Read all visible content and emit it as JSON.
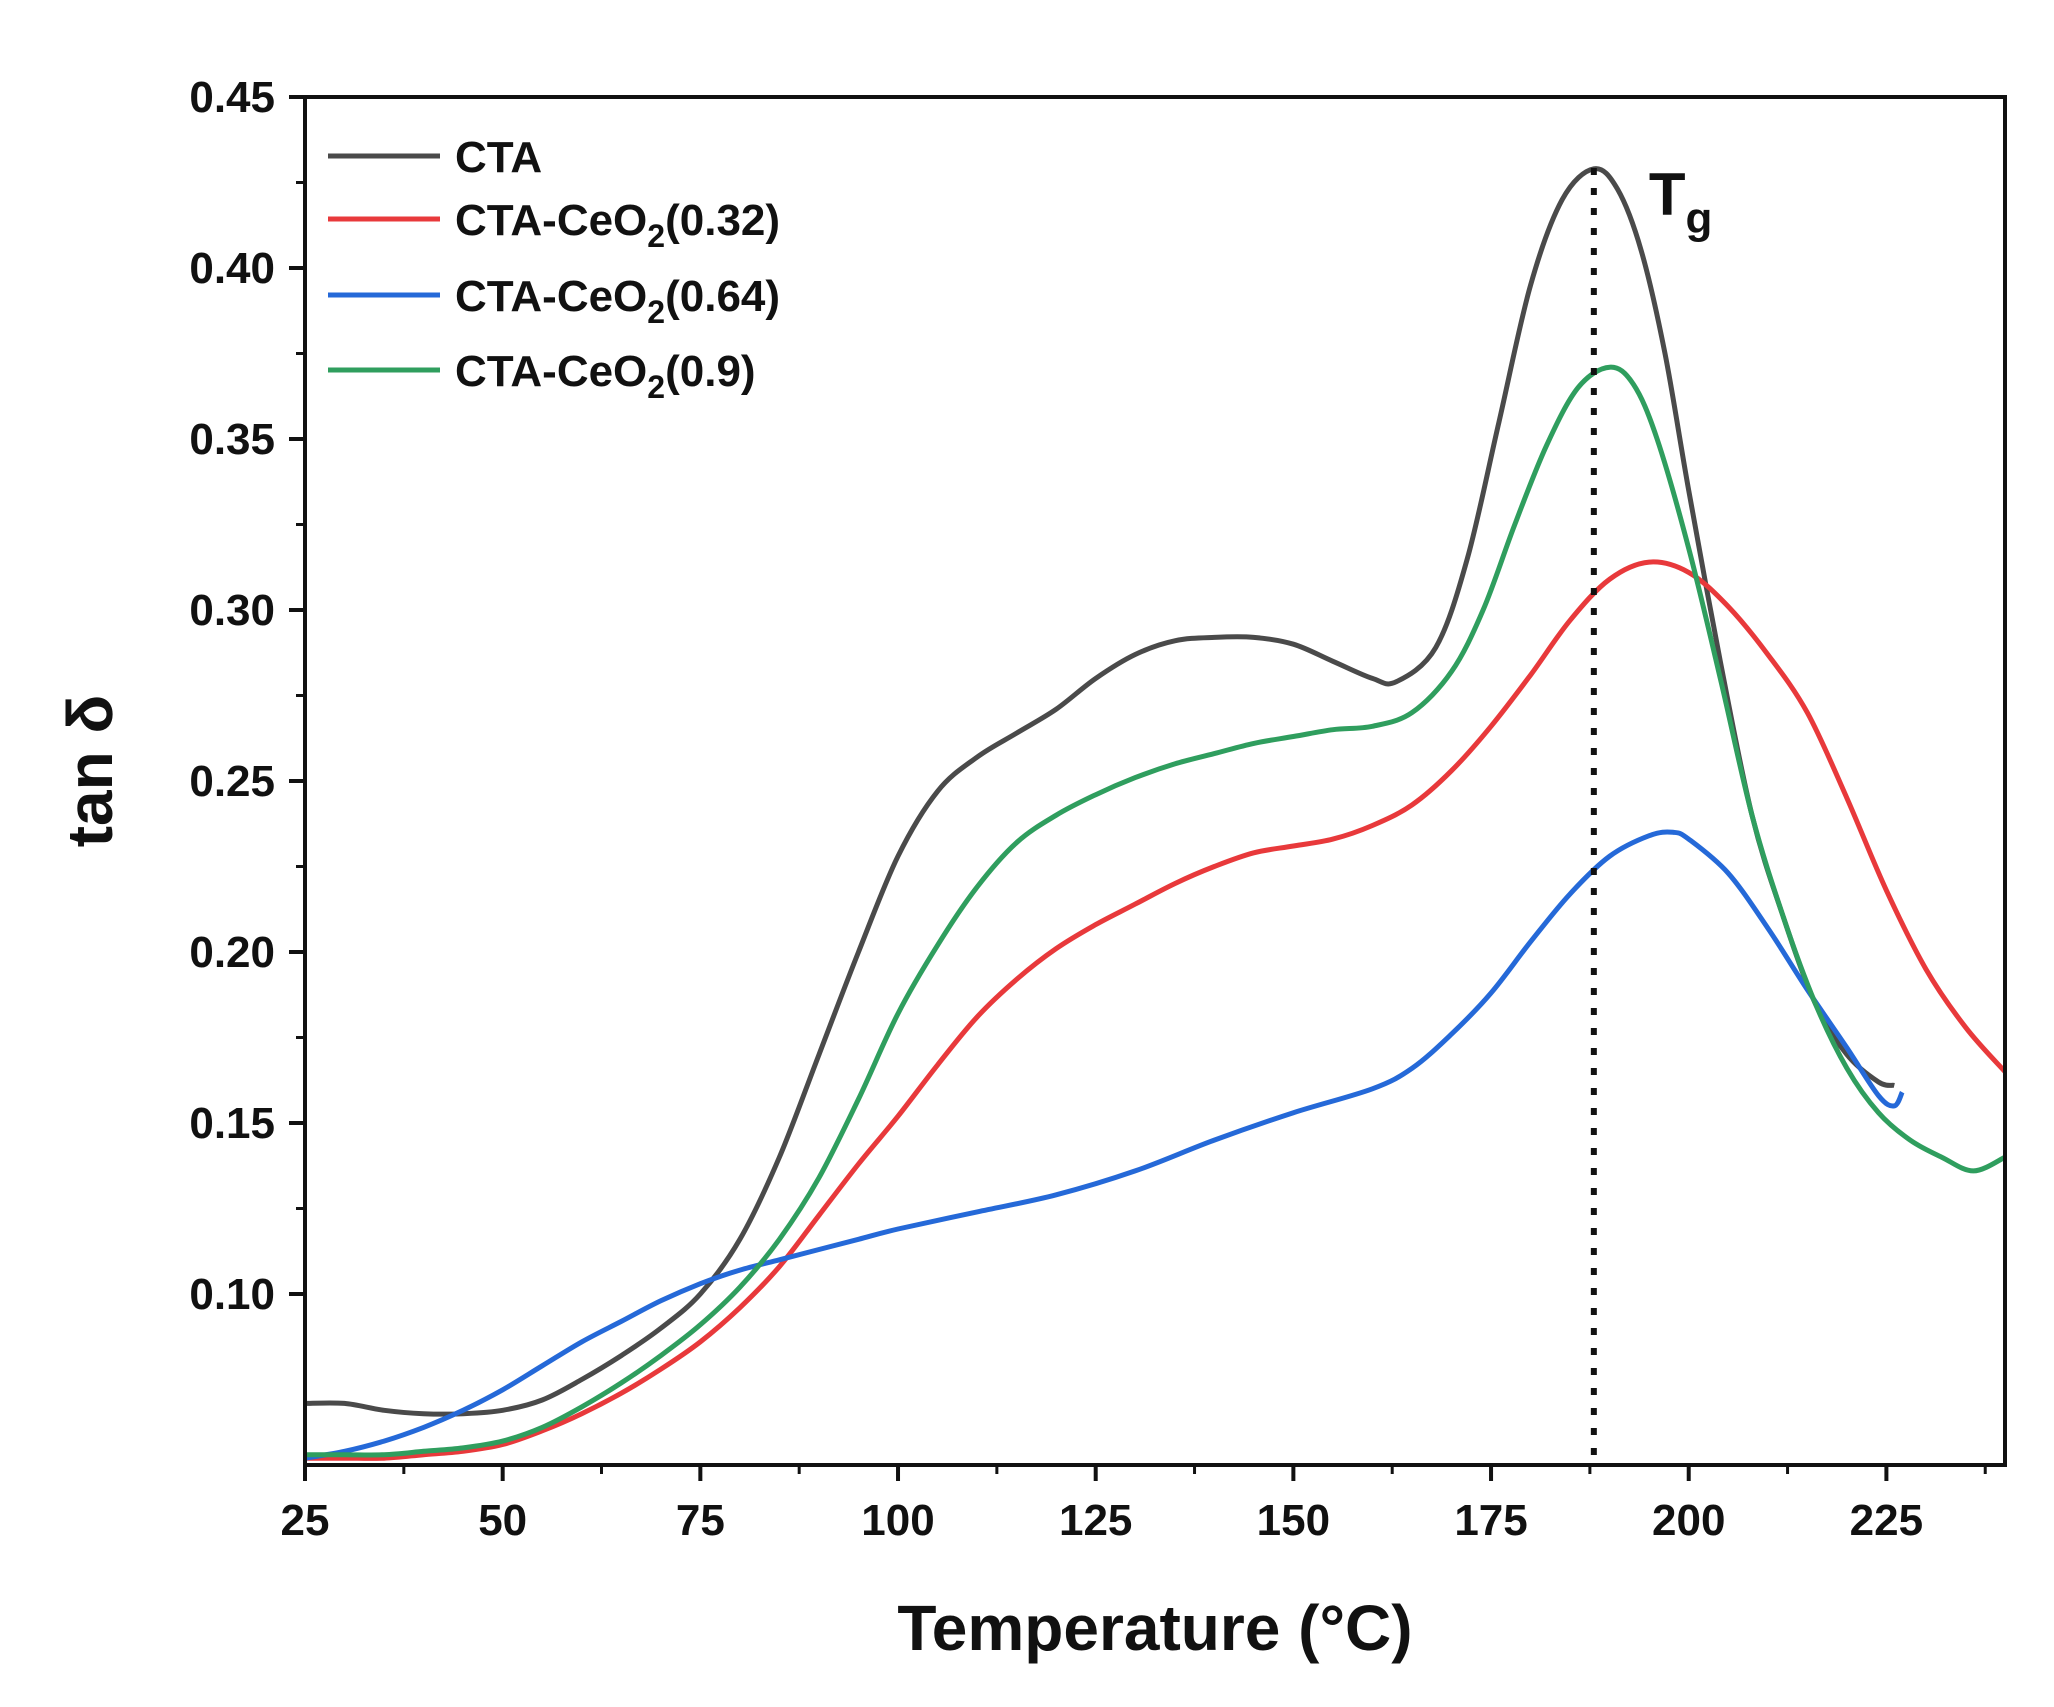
{
  "chart_data": {
    "type": "line",
    "title": "",
    "xlabel": "Temperature (°C)",
    "ylabel": "tan δ",
    "xlim": [
      25,
      240
    ],
    "ylim": [
      0.05,
      0.45
    ],
    "xticks": [
      25,
      50,
      75,
      100,
      125,
      150,
      175,
      200,
      225
    ],
    "xtick_labels": [
      "25",
      "50",
      "75",
      "100",
      "125",
      "150",
      "175",
      "200",
      "225"
    ],
    "yticks": [
      0.1,
      0.15,
      0.2,
      0.25,
      0.3,
      0.35,
      0.4,
      0.45
    ],
    "ytick_labels": [
      "0.10",
      "0.15",
      "0.20",
      "0.25",
      "0.30",
      "0.35",
      "0.40",
      "0.45"
    ],
    "grid": false,
    "legend_position": "top-left",
    "annotation": {
      "label": "T",
      "subscript": "g",
      "x": 188,
      "style": "dotted vertical line"
    },
    "series": [
      {
        "name": "CTA",
        "legend_main": "CTA",
        "legend_sub": "",
        "legend_tail": "",
        "color": "#4a4a4a",
        "x": [
          25,
          30,
          35,
          40,
          45,
          50,
          55,
          60,
          65,
          70,
          75,
          80,
          85,
          90,
          95,
          100,
          105,
          110,
          115,
          120,
          125,
          130,
          135,
          140,
          145,
          150,
          155,
          160,
          163,
          168,
          172,
          176,
          180,
          184,
          188,
          191,
          194,
          197,
          200,
          204,
          208,
          212,
          216,
          220,
          224,
          226
        ],
        "y": [
          0.068,
          0.068,
          0.066,
          0.065,
          0.065,
          0.066,
          0.069,
          0.075,
          0.082,
          0.09,
          0.1,
          0.116,
          0.14,
          0.17,
          0.2,
          0.228,
          0.247,
          0.257,
          0.264,
          0.271,
          0.28,
          0.287,
          0.291,
          0.292,
          0.292,
          0.29,
          0.285,
          0.28,
          0.279,
          0.289,
          0.315,
          0.355,
          0.395,
          0.42,
          0.429,
          0.423,
          0.405,
          0.375,
          0.335,
          0.285,
          0.24,
          0.21,
          0.185,
          0.17,
          0.162,
          0.161
        ]
      },
      {
        "name": "CTA-CeO2(0.32)",
        "legend_main": "CTA-CeO",
        "legend_sub": "2",
        "legend_tail": "(0.32)",
        "color": "#e8393b",
        "x": [
          25,
          30,
          35,
          40,
          45,
          50,
          55,
          60,
          65,
          70,
          75,
          80,
          85,
          90,
          95,
          100,
          105,
          110,
          115,
          120,
          125,
          130,
          135,
          140,
          145,
          150,
          155,
          160,
          165,
          170,
          175,
          180,
          185,
          190,
          195,
          200,
          205,
          210,
          215,
          220,
          225,
          230,
          235,
          240
        ],
        "y": [
          0.052,
          0.052,
          0.052,
          0.053,
          0.054,
          0.056,
          0.06,
          0.065,
          0.071,
          0.078,
          0.086,
          0.096,
          0.108,
          0.123,
          0.138,
          0.152,
          0.167,
          0.181,
          0.192,
          0.201,
          0.208,
          0.214,
          0.22,
          0.225,
          0.229,
          0.231,
          0.233,
          0.237,
          0.243,
          0.253,
          0.266,
          0.281,
          0.297,
          0.309,
          0.314,
          0.311,
          0.301,
          0.287,
          0.27,
          0.245,
          0.218,
          0.195,
          0.178,
          0.165
        ]
      },
      {
        "name": "CTA-CeO2(0.64)",
        "legend_main": "CTA-CeO",
        "legend_sub": "2",
        "legend_tail": "(0.64)",
        "color": "#2569d8",
        "x": [
          25,
          30,
          35,
          40,
          45,
          50,
          55,
          60,
          65,
          70,
          75,
          80,
          85,
          90,
          95,
          100,
          110,
          120,
          130,
          140,
          150,
          160,
          165,
          170,
          175,
          180,
          185,
          190,
          195,
          198,
          200,
          205,
          210,
          215,
          220,
          224,
          226,
          227
        ],
        "y": [
          0.052,
          0.054,
          0.057,
          0.061,
          0.066,
          0.072,
          0.079,
          0.086,
          0.092,
          0.098,
          0.103,
          0.107,
          0.11,
          0.113,
          0.116,
          0.119,
          0.124,
          0.129,
          0.136,
          0.145,
          0.153,
          0.16,
          0.166,
          0.176,
          0.188,
          0.203,
          0.217,
          0.228,
          0.234,
          0.235,
          0.233,
          0.223,
          0.207,
          0.189,
          0.172,
          0.158,
          0.155,
          0.159
        ]
      },
      {
        "name": "CTA-CeO2(0.9)",
        "legend_main": "CTA-CeO",
        "legend_sub": "2",
        "legend_tail": "(0.9)",
        "color": "#2f9e5e",
        "x": [
          25,
          30,
          35,
          40,
          45,
          50,
          55,
          60,
          65,
          70,
          75,
          80,
          85,
          90,
          95,
          100,
          105,
          110,
          115,
          120,
          125,
          130,
          135,
          140,
          145,
          150,
          155,
          160,
          165,
          170,
          174,
          178,
          182,
          186,
          190,
          193,
          196,
          200,
          204,
          208,
          212,
          216,
          220,
          224,
          228,
          232,
          236,
          240
        ],
        "y": [
          0.053,
          0.053,
          0.053,
          0.054,
          0.055,
          0.057,
          0.061,
          0.067,
          0.074,
          0.082,
          0.091,
          0.102,
          0.116,
          0.134,
          0.157,
          0.182,
          0.202,
          0.219,
          0.232,
          0.24,
          0.246,
          0.251,
          0.255,
          0.258,
          0.261,
          0.263,
          0.265,
          0.266,
          0.27,
          0.282,
          0.3,
          0.325,
          0.348,
          0.365,
          0.371,
          0.366,
          0.35,
          0.318,
          0.28,
          0.24,
          0.21,
          0.185,
          0.166,
          0.153,
          0.145,
          0.14,
          0.136,
          0.14
        ]
      }
    ]
  }
}
